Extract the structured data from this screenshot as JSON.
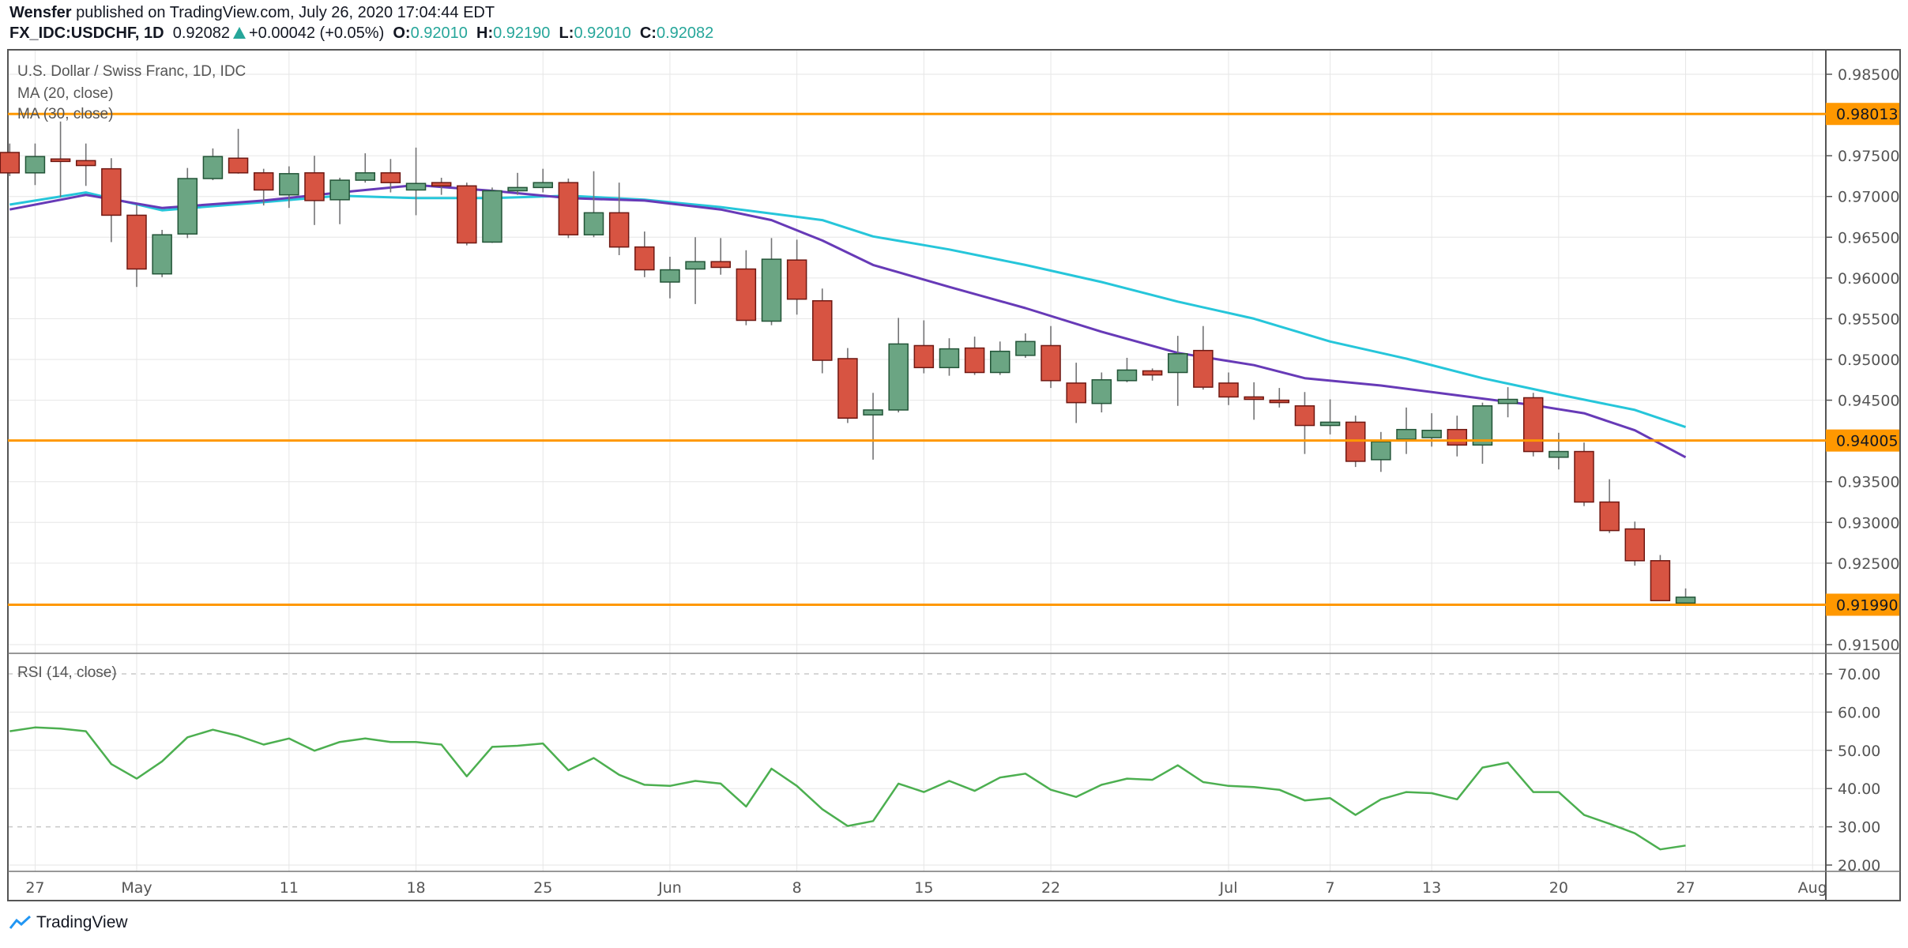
{
  "header": {
    "author": "Wensfer",
    "published": " published on TradingView.com, July 26, 2020 17:04:44 EDT",
    "symbol": "FX_IDC:USDCHF, 1D",
    "last": "0.92082",
    "change": "+0.00042 (+0.05%)",
    "o_label": "O:",
    "o": "0.92010",
    "h_label": "H:",
    "h": "0.92190",
    "l_label": "L:",
    "l": "0.92010",
    "c_label": "C:",
    "c": "0.92082"
  },
  "legend": {
    "title": "U.S. Dollar / Swiss Franc, 1D, IDC",
    "ma20": "MA (20, close)",
    "ma30": "MA (30, close)",
    "rsi": "RSI (14, close)"
  },
  "logo": {
    "text": "TradingView"
  },
  "colors": {
    "up": "#6ba583",
    "up_border": "#225437",
    "down": "#d75442",
    "down_border": "#6f1812",
    "wick": "#737375",
    "ma20": "#673ab7",
    "ma30": "#26c6da",
    "rsi": "#4caf50",
    "level": "#ff9800",
    "grid": "#e6e6e6"
  },
  "chart_data": {
    "type": "candlestick",
    "price_axis": {
      "range": [
        0.9145,
        0.9875
      ],
      "ticks": [
        "0.98500",
        "0.97500",
        "0.97000",
        "0.96500",
        "0.96000",
        "0.95500",
        "0.95000",
        "0.94500",
        "0.93500",
        "0.93000",
        "0.92500",
        "0.91500"
      ],
      "tick_values": [
        0.985,
        0.975,
        0.97,
        0.965,
        0.96,
        0.955,
        0.95,
        0.945,
        0.935,
        0.93,
        0.925,
        0.915
      ]
    },
    "levels": [
      {
        "value": 0.98013,
        "label": "0.98013"
      },
      {
        "value": 0.94005,
        "label": "0.94005"
      },
      {
        "value": 0.9199,
        "label": "0.91990"
      }
    ],
    "x_ticks": [
      {
        "date": "Apr 27",
        "label": "27"
      },
      {
        "date": "May 1",
        "label": "May"
      },
      {
        "date": "May 11",
        "label": "11"
      },
      {
        "date": "May 18",
        "label": "18"
      },
      {
        "date": "May 25",
        "label": "25"
      },
      {
        "date": "Jun 1",
        "label": "Jun"
      },
      {
        "date": "Jun 8",
        "label": "8"
      },
      {
        "date": "Jun 15",
        "label": "15"
      },
      {
        "date": "Jun 22",
        "label": "22"
      },
      {
        "date": "Jul 1",
        "label": "Jul"
      },
      {
        "date": "Jul 7",
        "label": "7"
      },
      {
        "date": "Jul 13",
        "label": "13"
      },
      {
        "date": "Jul 20",
        "label": "20"
      },
      {
        "date": "Jul 27",
        "label": "27"
      },
      {
        "date": "Aug 3",
        "label": "Aug"
      }
    ],
    "columns": [
      "date",
      "open",
      "high",
      "low",
      "close"
    ],
    "bars": [
      [
        "Apr 24",
        0.9754,
        0.9765,
        0.9725,
        0.9729
      ],
      [
        "Apr 27",
        0.9729,
        0.9765,
        0.9714,
        0.9749
      ],
      [
        "Apr 28",
        0.9746,
        0.9792,
        0.9699,
        0.9743
      ],
      [
        "Apr 29",
        0.9744,
        0.9765,
        0.9713,
        0.9738
      ],
      [
        "Apr 30",
        0.9734,
        0.9747,
        0.9644,
        0.9677
      ],
      [
        "May 1",
        0.9677,
        0.969,
        0.9589,
        0.9611
      ],
      [
        "May 4",
        0.9605,
        0.9659,
        0.9601,
        0.9653
      ],
      [
        "May 5",
        0.9654,
        0.9735,
        0.9649,
        0.9722
      ],
      [
        "May 6",
        0.9722,
        0.9759,
        0.972,
        0.9749
      ],
      [
        "May 7",
        0.9747,
        0.9783,
        0.9728,
        0.9729
      ],
      [
        "May 8",
        0.9729,
        0.9734,
        0.9689,
        0.9708
      ],
      [
        "May 11",
        0.9702,
        0.9737,
        0.9686,
        0.9728
      ],
      [
        "May 12",
        0.9729,
        0.975,
        0.9665,
        0.9695
      ],
      [
        "May 13",
        0.9696,
        0.9723,
        0.9666,
        0.972
      ],
      [
        "May 14",
        0.972,
        0.9753,
        0.9717,
        0.9729
      ],
      [
        "May 15",
        0.9729,
        0.9746,
        0.9705,
        0.9717
      ],
      [
        "May 18",
        0.9708,
        0.976,
        0.9677,
        0.9716
      ],
      [
        "May 19",
        0.9717,
        0.9723,
        0.9702,
        0.9713
      ],
      [
        "May 20",
        0.9713,
        0.9717,
        0.964,
        0.9643
      ],
      [
        "May 21",
        0.9644,
        0.9711,
        0.9643,
        0.9707
      ],
      [
        "May 22",
        0.9707,
        0.9729,
        0.9702,
        0.9711
      ],
      [
        "May 25",
        0.9711,
        0.9734,
        0.9705,
        0.9717
      ],
      [
        "May 26",
        0.9717,
        0.9722,
        0.9649,
        0.9653
      ],
      [
        "May 27",
        0.9653,
        0.9731,
        0.965,
        0.968
      ],
      [
        "May 28",
        0.968,
        0.9717,
        0.9628,
        0.9638
      ],
      [
        "May 29",
        0.9638,
        0.9657,
        0.9601,
        0.961
      ],
      [
        "Jun 1",
        0.9595,
        0.9626,
        0.9575,
        0.961
      ],
      [
        "Jun 2",
        0.9611,
        0.965,
        0.9568,
        0.962
      ],
      [
        "Jun 3",
        0.962,
        0.9649,
        0.9604,
        0.9613
      ],
      [
        "Jun 4",
        0.9611,
        0.9634,
        0.9542,
        0.9548
      ],
      [
        "Jun 5",
        0.9547,
        0.9649,
        0.9542,
        0.9623
      ],
      [
        "Jun 8",
        0.9622,
        0.9647,
        0.9555,
        0.9574
      ],
      [
        "Jun 9",
        0.9572,
        0.9587,
        0.9483,
        0.9499
      ],
      [
        "Jun 10",
        0.9501,
        0.9514,
        0.9422,
        0.9428
      ],
      [
        "Jun 11",
        0.9432,
        0.9459,
        0.9377,
        0.9438
      ],
      [
        "Jun 12",
        0.9438,
        0.9551,
        0.9435,
        0.9519
      ],
      [
        "Jun 15",
        0.9517,
        0.9548,
        0.9483,
        0.949
      ],
      [
        "Jun 16",
        0.949,
        0.9526,
        0.948,
        0.9513
      ],
      [
        "Jun 17",
        0.9514,
        0.9528,
        0.9481,
        0.9484
      ],
      [
        "Jun 18",
        0.9484,
        0.9522,
        0.9481,
        0.951
      ],
      [
        "Jun 19",
        0.9505,
        0.9532,
        0.9502,
        0.9522
      ],
      [
        "Jun 22",
        0.9517,
        0.9541,
        0.9465,
        0.9474
      ],
      [
        "Jun 23",
        0.9471,
        0.9496,
        0.9422,
        0.9447
      ],
      [
        "Jun 24",
        0.9446,
        0.9484,
        0.9435,
        0.9475
      ],
      [
        "Jun 25",
        0.9474,
        0.9502,
        0.9472,
        0.9487
      ],
      [
        "Jun 26",
        0.9486,
        0.9489,
        0.9474,
        0.9481
      ],
      [
        "Jun 29",
        0.9484,
        0.9529,
        0.9443,
        0.9507
      ],
      [
        "Jun 30",
        0.9511,
        0.9541,
        0.9463,
        0.9466
      ],
      [
        "Jul 1",
        0.9471,
        0.9484,
        0.9444,
        0.9454
      ],
      [
        "Jul 2",
        0.9454,
        0.9472,
        0.9426,
        0.9451
      ],
      [
        "Jul 3",
        0.945,
        0.9465,
        0.9441,
        0.9449
      ],
      [
        "Jul 6",
        0.9443,
        0.946,
        0.9384,
        0.9419
      ],
      [
        "Jul 7",
        0.9419,
        0.9451,
        0.9408,
        0.9423
      ],
      [
        "Jul 8",
        0.9423,
        0.9431,
        0.9368,
        0.9375
      ],
      [
        "Jul 9",
        0.9377,
        0.9411,
        0.9362,
        0.9399
      ],
      [
        "Jul 10",
        0.9402,
        0.9441,
        0.9384,
        0.9414
      ],
      [
        "Jul 13",
        0.9404,
        0.9434,
        0.9393,
        0.9413
      ],
      [
        "Jul 14",
        0.9414,
        0.9431,
        0.9381,
        0.9395
      ],
      [
        "Jul 15",
        0.9395,
        0.9447,
        0.9372,
        0.9443
      ],
      [
        "Jul 16",
        0.9446,
        0.9466,
        0.9429,
        0.9451
      ],
      [
        "Jul 17",
        0.9453,
        0.9459,
        0.9381,
        0.9387
      ],
      [
        "Jul 20",
        0.938,
        0.941,
        0.9365,
        0.9387
      ],
      [
        "Jul 21",
        0.9387,
        0.9398,
        0.932,
        0.9325
      ],
      [
        "Jul 22",
        0.9325,
        0.9353,
        0.9287,
        0.929
      ],
      [
        "Jul 23",
        0.9292,
        0.9301,
        0.9247,
        0.9253
      ],
      [
        "Jul 24",
        0.9253,
        0.926,
        0.9204,
        0.9204
      ],
      [
        "Jul 27",
        0.9201,
        0.9219,
        0.9201,
        0.92082
      ]
    ],
    "ma20": [
      [
        "Apr 24",
        0.9684
      ],
      [
        "Apr 29",
        0.9702
      ],
      [
        "May 4",
        0.9686
      ],
      [
        "May 8",
        0.9695
      ],
      [
        "May 13",
        0.9705
      ],
      [
        "May 18",
        0.9714
      ],
      [
        "May 21",
        0.9707
      ],
      [
        "May 26",
        0.9698
      ],
      [
        "May 29",
        0.9695
      ],
      [
        "Jun 3",
        0.9684
      ],
      [
        "Jun 5",
        0.9671
      ],
      [
        "Jun 9",
        0.9646
      ],
      [
        "Jun 11",
        0.9616
      ],
      [
        "Jun 16",
        0.9589
      ],
      [
        "Jun 19",
        0.9563
      ],
      [
        "Jun 24",
        0.9534
      ],
      [
        "Jun 29",
        0.9508
      ],
      [
        "Jul 2",
        0.9493
      ],
      [
        "Jul 6",
        0.9477
      ],
      [
        "Jul 9",
        0.9468
      ],
      [
        "Jul 14",
        0.9456
      ],
      [
        "Jul 17",
        0.9444
      ],
      [
        "Jul 21",
        0.9434
      ],
      [
        "Jul 23",
        0.9413
      ],
      [
        "Jul 27",
        0.938
      ]
    ],
    "ma30": [
      [
        "Apr 24",
        0.969
      ],
      [
        "Apr 29",
        0.9705
      ],
      [
        "May 4",
        0.9683
      ],
      [
        "May 8",
        0.9693
      ],
      [
        "May 13",
        0.9701
      ],
      [
        "May 18",
        0.9698
      ],
      [
        "May 21",
        0.9698
      ],
      [
        "May 26",
        0.9701
      ],
      [
        "May 29",
        0.9696
      ],
      [
        "Jun 3",
        0.9687
      ],
      [
        "Jun 9",
        0.9671
      ],
      [
        "Jun 11",
        0.9651
      ],
      [
        "Jun 16",
        0.9635
      ],
      [
        "Jun 19",
        0.9616
      ],
      [
        "Jun 24",
        0.9595
      ],
      [
        "Jun 29",
        0.9571
      ],
      [
        "Jul 2",
        0.955
      ],
      [
        "Jul 7",
        0.9522
      ],
      [
        "Jul 10",
        0.9501
      ],
      [
        "Jul 15",
        0.9477
      ],
      [
        "Jul 20",
        0.9457
      ],
      [
        "Jul 23",
        0.9438
      ],
      [
        "Jul 27",
        0.9417
      ]
    ],
    "rsi": {
      "range": [
        18,
        74
      ],
      "ticks": [
        "70.00",
        "60.00",
        "50.00",
        "40.00",
        "30.00",
        "20.00"
      ],
      "tick_values": [
        70,
        60,
        50,
        40,
        30,
        20
      ],
      "dashed_levels": [
        70,
        30
      ],
      "values": [
        55.0,
        56.0,
        55.7,
        55.0,
        46.4,
        42.6,
        47.1,
        53.4,
        55.4,
        53.8,
        51.5,
        53.1,
        49.9,
        52.2,
        53.1,
        52.2,
        52.2,
        51.5,
        43.2,
        50.9,
        51.2,
        51.8,
        44.8,
        48.0,
        43.6,
        41.0,
        40.7,
        42.0,
        41.3,
        35.3,
        45.2,
        40.7,
        34.6,
        30.2,
        31.5,
        41.3,
        39.1,
        42.0,
        39.4,
        42.9,
        43.9,
        39.7,
        37.8,
        41.0,
        42.6,
        42.3,
        46.1,
        41.7,
        40.7,
        40.4,
        39.7,
        36.9,
        37.5,
        33.1,
        37.2,
        39.1,
        38.8,
        37.2,
        45.5,
        46.8,
        39.1,
        39.1,
        33.1,
        30.8,
        28.3,
        24.1,
        25.1
      ]
    },
    "grid": true
  }
}
